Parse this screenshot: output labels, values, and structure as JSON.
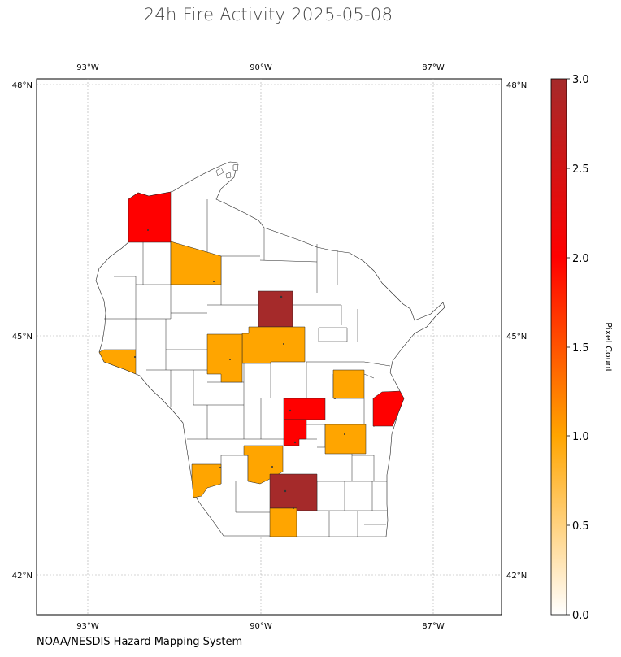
{
  "title": "24h Fire Activity 2025-05-08",
  "source": "NOAA/NESDIS Hazard Mapping System",
  "map": {
    "lon_ticks": [
      "93°W",
      "90°W",
      "87°W"
    ],
    "lat_ticks": [
      "48°N",
      "45°N",
      "42°N"
    ],
    "region": "Wisconsin counties",
    "grid": true
  },
  "colorbar": {
    "label": "Pixel Count",
    "ticks": [
      "0.0",
      "0.5",
      "1.0",
      "1.5",
      "2.0",
      "2.5",
      "3.0"
    ],
    "range": [
      0,
      3
    ],
    "colors": [
      "#ffffff",
      "#ffa500",
      "#ff0000",
      "#a52a2a"
    ]
  },
  "fire_counties": [
    {
      "value": 2,
      "color": "#ff0000"
    },
    {
      "value": 1,
      "color": "#ffa500"
    },
    {
      "value": 3,
      "color": "#a52a2a"
    },
    {
      "value": 1,
      "color": "#ffa500"
    },
    {
      "value": 1,
      "color": "#ffa500"
    },
    {
      "value": 1,
      "color": "#ffa500"
    },
    {
      "value": 2,
      "color": "#ff0000"
    },
    {
      "value": 2,
      "color": "#ff0000"
    },
    {
      "value": 2,
      "color": "#ff0000"
    },
    {
      "value": 1,
      "color": "#ffa500"
    },
    {
      "value": 1,
      "color": "#ffa500"
    },
    {
      "value": 1,
      "color": "#ffa500"
    },
    {
      "value": 3,
      "color": "#a52a2a"
    },
    {
      "value": 1,
      "color": "#ffa500"
    },
    {
      "value": 1,
      "color": "#ffa500"
    }
  ]
}
